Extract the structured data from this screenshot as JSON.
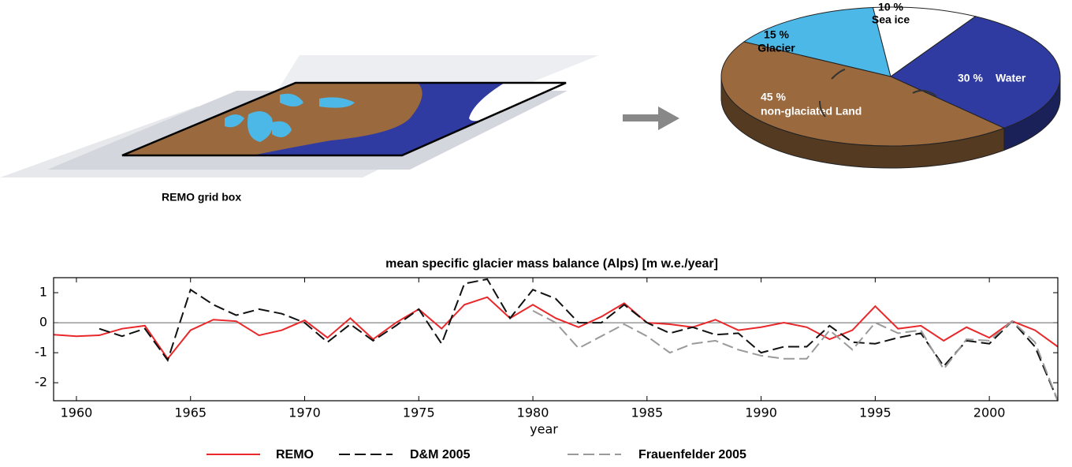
{
  "diagram": {
    "caption": "REMO grid box"
  },
  "chart_data": [
    {
      "type": "pie",
      "categories": [
        "Glacier",
        "Sea ice",
        "Water",
        "non-glaciated Land"
      ],
      "values": [
        15,
        10,
        30,
        45
      ],
      "value_labels": [
        "15 %",
        "10 %",
        "30 %",
        "45 %"
      ],
      "colors": [
        "#4cb8e8",
        "#ffffff",
        "#2f3ba0",
        "#9a6a3e"
      ]
    },
    {
      "type": "line",
      "title": "mean specific glacier mass balance (Alps) [m w.e./year]",
      "xlabel": "year",
      "x": [
        1959,
        1960,
        1961,
        1962,
        1963,
        1964,
        1965,
        1966,
        1967,
        1968,
        1969,
        1970,
        1971,
        1972,
        1973,
        1974,
        1975,
        1976,
        1977,
        1978,
        1979,
        1980,
        1981,
        1982,
        1983,
        1984,
        1985,
        1986,
        1987,
        1988,
        1989,
        1990,
        1991,
        1992,
        1993,
        1994,
        1995,
        1996,
        1997,
        1998,
        1999,
        2000,
        2001,
        2002,
        2003
      ],
      "xlim": [
        1959,
        2003
      ],
      "xticks": [
        1960,
        1965,
        1970,
        1975,
        1980,
        1985,
        1990,
        1995,
        2000
      ],
      "ylim": [
        -2.6,
        1.5
      ],
      "yticks": [
        -2,
        -1,
        0,
        1
      ],
      "series": [
        {
          "name": "REMO",
          "color": "#e8282a",
          "dash": "none",
          "values": [
            -0.4,
            -0.45,
            -0.42,
            -0.2,
            -0.1,
            -1.2,
            -0.25,
            0.1,
            0.05,
            -0.42,
            -0.25,
            0.08,
            -0.5,
            0.15,
            -0.55,
            0.0,
            0.45,
            -0.2,
            0.6,
            0.85,
            0.15,
            0.6,
            0.15,
            -0.15,
            0.2,
            0.65,
            0.0,
            -0.05,
            -0.15,
            0.1,
            -0.25,
            -0.15,
            0.0,
            -0.15,
            -0.55,
            -0.25,
            0.55,
            -0.2,
            -0.1,
            -0.6,
            -0.15,
            -0.5,
            0.05,
            -0.25,
            -0.8
          ]
        },
        {
          "name": "D&M 2005",
          "color": "#111111",
          "dash": "14 6",
          "values": [
            null,
            null,
            -0.2,
            -0.45,
            -0.2,
            -1.25,
            1.1,
            0.6,
            0.25,
            0.45,
            0.3,
            0.0,
            -0.65,
            -0.05,
            -0.6,
            -0.1,
            0.45,
            -0.7,
            1.3,
            1.45,
            0.15,
            1.1,
            0.8,
            0.0,
            0.0,
            0.6,
            0.0,
            -0.35,
            -0.15,
            -0.4,
            -0.35,
            -1.0,
            -0.8,
            -0.8,
            -0.1,
            -0.65,
            -0.7,
            -0.5,
            -0.35,
            -1.45,
            -0.6,
            -0.7,
            0.05,
            -0.8,
            -2.6
          ]
        },
        {
          "name": "Frauenfelder 2005",
          "color": "#9a9a9a",
          "dash": "14 6",
          "values": [
            null,
            null,
            null,
            null,
            null,
            null,
            null,
            null,
            null,
            null,
            null,
            null,
            null,
            null,
            null,
            null,
            null,
            null,
            null,
            null,
            null,
            0.4,
            0.0,
            -0.85,
            -0.45,
            -0.05,
            -0.45,
            -1.0,
            -0.7,
            -0.6,
            -0.9,
            -1.1,
            -1.2,
            -1.2,
            -0.25,
            -0.9,
            0.0,
            -0.35,
            -0.25,
            -1.55,
            -0.55,
            -0.6,
            0.05,
            -0.65,
            -2.6
          ]
        }
      ]
    }
  ]
}
